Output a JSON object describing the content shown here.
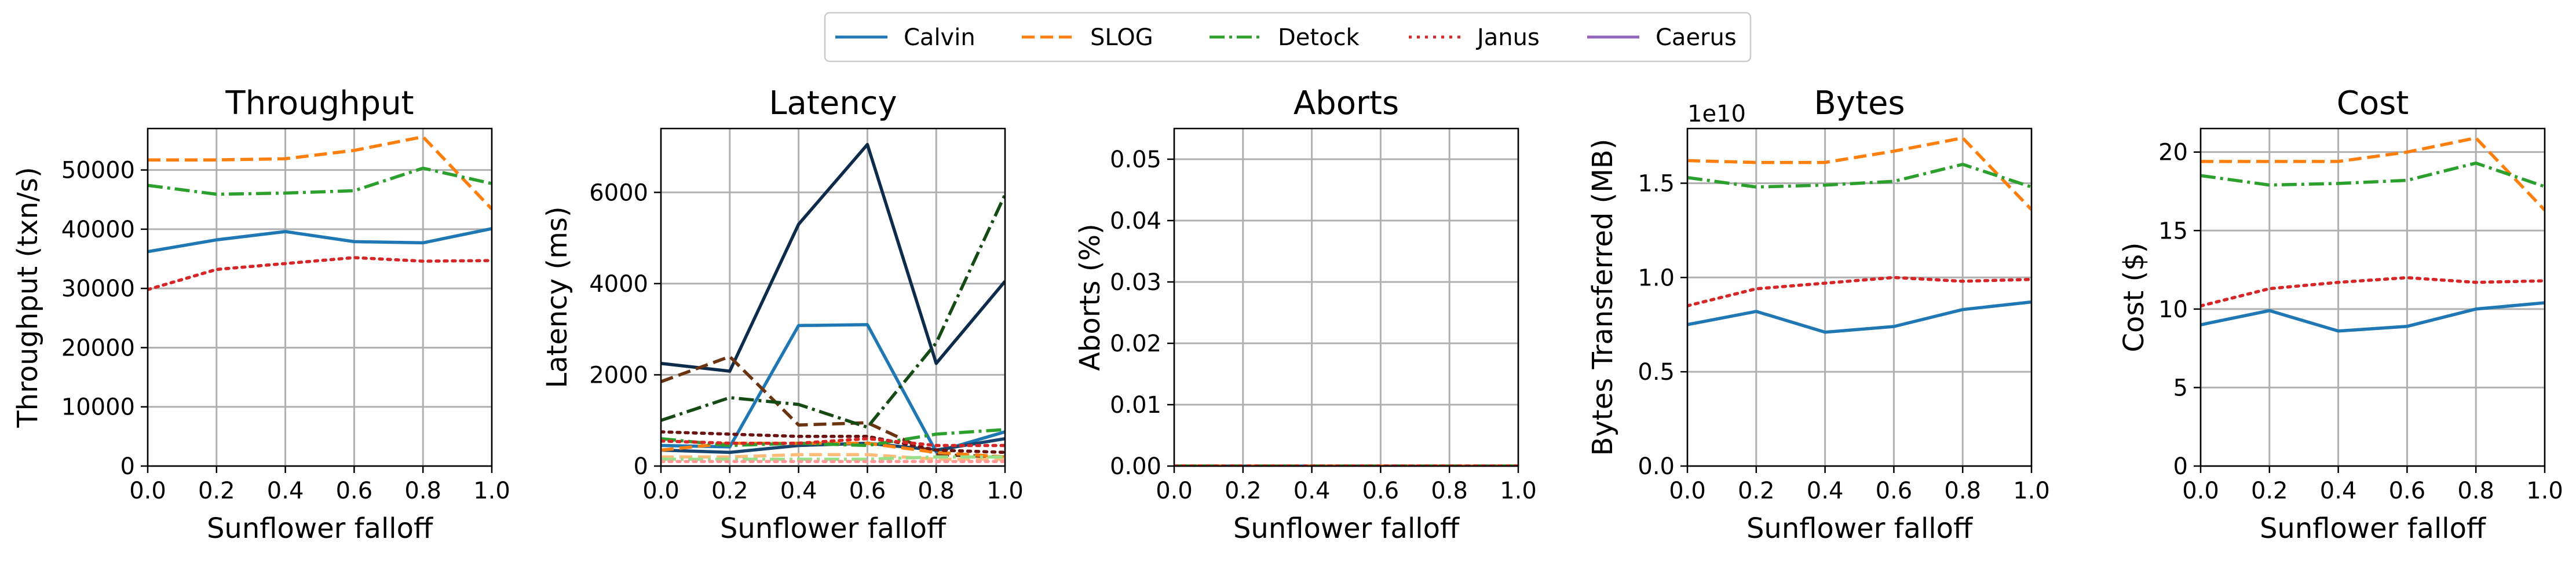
{
  "legend": {
    "items": [
      {
        "name": "Calvin",
        "color": "#1f77b4",
        "dash": "solid"
      },
      {
        "name": "SLOG",
        "color": "#ff7f0e",
        "dash": "dashed"
      },
      {
        "name": "Detock",
        "color": "#2ca02c",
        "dash": "dashdot"
      },
      {
        "name": "Janus",
        "color": "#d62728",
        "dash": "dotted"
      },
      {
        "name": "Caerus",
        "color": "#9467bd",
        "dash": "solid"
      }
    ]
  },
  "chart_data": [
    {
      "type": "line",
      "title": "Throughput",
      "xlabel": "Sunflower falloff",
      "ylabel": "Throughput (txn/s)",
      "xlim": [
        0,
        1.0
      ],
      "ylim": [
        0,
        57000
      ],
      "xticks": [
        "0.0",
        "0.2",
        "0.4",
        "0.6",
        "0.8",
        "1.0"
      ],
      "yticks": [
        0,
        10000,
        20000,
        30000,
        40000,
        50000
      ],
      "ytick_labels": [
        "0",
        "10000",
        "20000",
        "30000",
        "40000",
        "50000"
      ],
      "grid": true,
      "x": [
        0.0,
        0.2,
        0.4,
        0.6,
        0.8,
        1.0
      ],
      "series": [
        {
          "name": "Calvin",
          "color": "#1f77b4",
          "dash": "solid",
          "values": [
            36200,
            38200,
            39600,
            37900,
            37700,
            40100
          ]
        },
        {
          "name": "SLOG",
          "color": "#ff7f0e",
          "dash": "dashed",
          "values": [
            51700,
            51700,
            51900,
            53300,
            55600,
            43400
          ]
        },
        {
          "name": "Detock",
          "color": "#2ca02c",
          "dash": "dashdot",
          "values": [
            47400,
            45900,
            46100,
            46500,
            50300,
            47700
          ]
        },
        {
          "name": "Janus",
          "color": "#d62728",
          "dash": "dotted",
          "values": [
            29800,
            33200,
            34200,
            35200,
            34600,
            34700
          ]
        }
      ]
    },
    {
      "type": "line",
      "title": "Latency",
      "xlabel": "Sunflower falloff",
      "ylabel": "Latency (ms)",
      "xlim": [
        0,
        1.0
      ],
      "ylim": [
        0,
        7400
      ],
      "xticks": [
        "0.0",
        "0.2",
        "0.4",
        "0.6",
        "0.8",
        "1.0"
      ],
      "yticks": [
        0,
        2000,
        4000,
        6000
      ],
      "ytick_labels": [
        "0",
        "2000",
        "4000",
        "6000"
      ],
      "grid": true,
      "x": [
        0.0,
        0.2,
        0.4,
        0.6,
        0.8,
        1.0
      ],
      "series": [
        {
          "color": "#0d2b4a",
          "dash": "solid",
          "values": [
            2250,
            2080,
            5300,
            7050,
            2250,
            4050
          ]
        },
        {
          "color": "#1f77b4",
          "dash": "solid",
          "values": [
            450,
            420,
            3080,
            3100,
            310,
            750
          ]
        },
        {
          "color": "#17456e",
          "dash": "solid",
          "values": [
            350,
            300,
            450,
            500,
            350,
            600
          ]
        },
        {
          "color": "#6b3410",
          "dash": "dashed",
          "values": [
            1850,
            2400,
            900,
            950,
            250,
            200
          ]
        },
        {
          "color": "#ff7f0e",
          "dash": "dashed",
          "values": [
            350,
            500,
            500,
            500,
            300,
            200
          ]
        },
        {
          "color": "#ffbb78",
          "dash": "dashed",
          "values": [
            200,
            200,
            250,
            250,
            150,
            150
          ]
        },
        {
          "color": "#154a15",
          "dash": "dashdot",
          "values": [
            1000,
            1500,
            1350,
            850,
            2700,
            5950
          ]
        },
        {
          "color": "#2ca02c",
          "dash": "dashdot",
          "values": [
            600,
            450,
            500,
            450,
            700,
            800
          ]
        },
        {
          "color": "#98df8a",
          "dash": "dashdot",
          "values": [
            150,
            150,
            150,
            150,
            200,
            200
          ]
        },
        {
          "color": "#6b1212",
          "dash": "dotted",
          "values": [
            750,
            700,
            650,
            650,
            350,
            300
          ]
        },
        {
          "color": "#d62728",
          "dash": "dotted",
          "values": [
            550,
            500,
            500,
            600,
            450,
            450
          ]
        },
        {
          "color": "#ff9896",
          "dash": "dotted",
          "values": [
            100,
            100,
            100,
            100,
            100,
            100
          ]
        }
      ]
    },
    {
      "type": "line",
      "title": "Aborts",
      "xlabel": "Sunflower falloff",
      "ylabel": "Aborts (%)",
      "xlim": [
        0,
        1.0
      ],
      "ylim": [
        0,
        0.055
      ],
      "xticks": [
        "0.0",
        "0.2",
        "0.4",
        "0.6",
        "0.8",
        "1.0"
      ],
      "yticks": [
        0,
        0.01,
        0.02,
        0.03,
        0.04,
        0.05
      ],
      "ytick_labels": [
        "0.00",
        "0.01",
        "0.02",
        "0.03",
        "0.04",
        "0.05"
      ],
      "grid": true,
      "x": [
        0.0,
        0.2,
        0.4,
        0.6,
        0.8,
        1.0
      ],
      "series": [
        {
          "name": "Calvin",
          "color": "#1f77b4",
          "dash": "solid",
          "values": [
            0,
            0,
            0,
            0,
            0,
            0
          ]
        },
        {
          "name": "SLOG",
          "color": "#ff7f0e",
          "dash": "dashed",
          "values": [
            0,
            0,
            0,
            0,
            0,
            0
          ]
        },
        {
          "name": "Detock",
          "color": "#2ca02c",
          "dash": "dashdot",
          "values": [
            0,
            0,
            0,
            0,
            0,
            0
          ]
        },
        {
          "name": "Janus",
          "color": "#d62728",
          "dash": "dotted",
          "values": [
            0,
            0,
            0,
            0,
            0,
            0
          ]
        }
      ]
    },
    {
      "type": "line",
      "title": "Bytes",
      "xlabel": "Sunflower falloff",
      "ylabel": "Bytes Transferred (MB)",
      "offset_label": "1e10",
      "xlim": [
        0,
        1.0
      ],
      "ylim": [
        0,
        1.79
      ],
      "xticks": [
        "0.0",
        "0.2",
        "0.4",
        "0.6",
        "0.8",
        "1.0"
      ],
      "yticks": [
        0,
        0.5,
        1.0,
        1.5
      ],
      "ytick_labels": [
        "0.0",
        "0.5",
        "1.0",
        "1.5"
      ],
      "grid": true,
      "x": [
        0.0,
        0.2,
        0.4,
        0.6,
        0.8,
        1.0
      ],
      "series": [
        {
          "name": "Calvin",
          "color": "#1f77b4",
          "dash": "solid",
          "values": [
            0.75,
            0.82,
            0.71,
            0.74,
            0.83,
            0.87
          ]
        },
        {
          "name": "SLOG",
          "color": "#ff7f0e",
          "dash": "dashed",
          "values": [
            1.62,
            1.61,
            1.61,
            1.67,
            1.74,
            1.36
          ]
        },
        {
          "name": "Detock",
          "color": "#2ca02c",
          "dash": "dashdot",
          "values": [
            1.53,
            1.48,
            1.49,
            1.51,
            1.6,
            1.48
          ]
        },
        {
          "name": "Janus",
          "color": "#d62728",
          "dash": "dotted",
          "values": [
            0.85,
            0.94,
            0.97,
            1.0,
            0.98,
            0.99
          ]
        }
      ]
    },
    {
      "type": "line",
      "title": "Cost",
      "xlabel": "Sunflower falloff",
      "ylabel": "Cost ($)",
      "xlim": [
        0,
        1.0
      ],
      "ylim": [
        0,
        21.5
      ],
      "xticks": [
        "0.0",
        "0.2",
        "0.4",
        "0.6",
        "0.8",
        "1.0"
      ],
      "yticks": [
        0,
        5,
        10,
        15,
        20
      ],
      "ytick_labels": [
        "0",
        "5",
        "10",
        "15",
        "20"
      ],
      "grid": true,
      "x": [
        0.0,
        0.2,
        0.4,
        0.6,
        0.8,
        1.0
      ],
      "series": [
        {
          "name": "Calvin",
          "color": "#1f77b4",
          "dash": "solid",
          "values": [
            9.0,
            9.9,
            8.6,
            8.9,
            10.0,
            10.4
          ]
        },
        {
          "name": "SLOG",
          "color": "#ff7f0e",
          "dash": "dashed",
          "values": [
            19.4,
            19.4,
            19.4,
            20.0,
            20.9,
            16.3
          ]
        },
        {
          "name": "Detock",
          "color": "#2ca02c",
          "dash": "dashdot",
          "values": [
            18.5,
            17.9,
            18.0,
            18.2,
            19.3,
            17.8
          ]
        },
        {
          "name": "Janus",
          "color": "#d62728",
          "dash": "dotted",
          "values": [
            10.2,
            11.3,
            11.7,
            12.0,
            11.7,
            11.8
          ]
        }
      ]
    }
  ]
}
